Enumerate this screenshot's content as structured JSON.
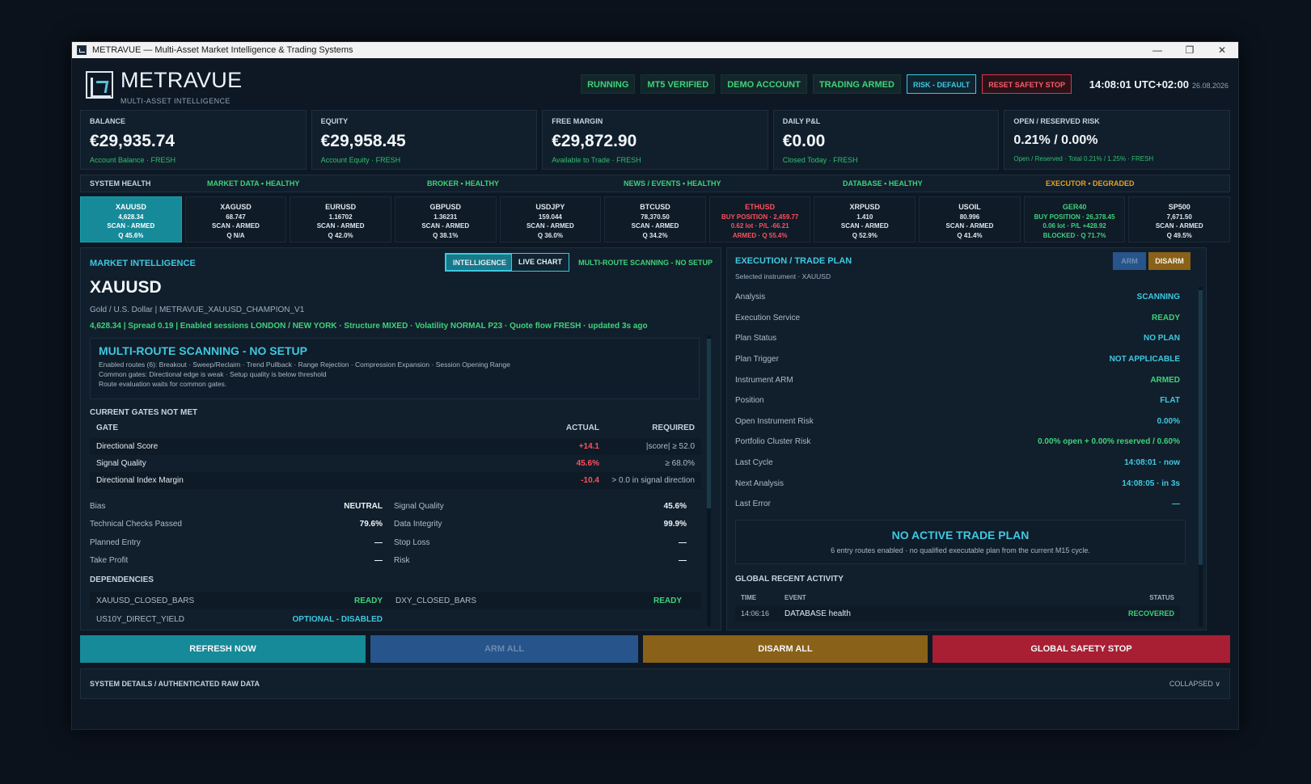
{
  "window": {
    "title": "METRAVUE — Multi-Asset Market Intelligence & Trading Systems",
    "minimize": "—",
    "restore": "❐",
    "close": "✕"
  },
  "brand": {
    "name": "METRAVUE",
    "tagline": "MULTI-ASSET INTELLIGENCE"
  },
  "status_pills": [
    "RUNNING",
    "MT5 VERIFIED",
    "DEMO ACCOUNT",
    "TRADING ARMED"
  ],
  "risk_button": "RISK - DEFAULT",
  "safety_button": "RESET SAFETY STOP",
  "clock": {
    "time": "14:08:01 UTC+02:00",
    "date": "26.08.2026"
  },
  "kpis": [
    {
      "label": "BALANCE",
      "value": "€29,935.74",
      "sub": "Account Balance · FRESH"
    },
    {
      "label": "EQUITY",
      "value": "€29,958.45",
      "sub": "Account Equity · FRESH"
    },
    {
      "label": "FREE MARGIN",
      "value": "€29,872.90",
      "sub": "Available to Trade · FRESH"
    },
    {
      "label": "DAILY P&L",
      "value": "€0.00",
      "sub": "Closed Today · FRESH"
    },
    {
      "label": "OPEN / RESERVED RISK",
      "value": "0.21% / 0.00%",
      "sub": "Open / Reserved · Total 0.21% / 1.25% · FRESH"
    }
  ],
  "health": {
    "title": "SYSTEM HEALTH",
    "items": [
      {
        "label": "MARKET DATA",
        "state": "HEALTHY"
      },
      {
        "label": "BROKER",
        "state": "HEALTHY"
      },
      {
        "label": "NEWS / EVENTS",
        "state": "HEALTHY"
      },
      {
        "label": "DATABASE",
        "state": "HEALTHY"
      },
      {
        "label": "EXECUTOR",
        "state": "DEGRADED"
      }
    ]
  },
  "tiles": [
    {
      "name": "XAUUSD",
      "l1": "4,628.34",
      "l2": "SCAN - ARMED",
      "l3": "Q 45.6%"
    },
    {
      "name": "XAGUSD",
      "l1": "68.747",
      "l2": "SCAN - ARMED",
      "l3": "Q N/A"
    },
    {
      "name": "EURUSD",
      "l1": "1.16702",
      "l2": "SCAN - ARMED",
      "l3": "Q 42.0%"
    },
    {
      "name": "GBPUSD",
      "l1": "1.36231",
      "l2": "SCAN - ARMED",
      "l3": "Q 38.1%"
    },
    {
      "name": "USDJPY",
      "l1": "159.044",
      "l2": "SCAN - ARMED",
      "l3": "Q 36.0%"
    },
    {
      "name": "BTCUSD",
      "l1": "78,370.50",
      "l2": "SCAN - ARMED",
      "l3": "Q 34.2%"
    },
    {
      "name": "ETHUSD",
      "l1": "BUY POSITION · 2,459.77",
      "l2": "0.62 lot · P/L -66.21",
      "l3": "ARMED · Q 55.4%"
    },
    {
      "name": "XRPUSD",
      "l1": "1.410",
      "l2": "SCAN - ARMED",
      "l3": "Q 52.9%"
    },
    {
      "name": "USOIL",
      "l1": "80.996",
      "l2": "SCAN - ARMED",
      "l3": "Q 41.4%"
    },
    {
      "name": "GER40",
      "l1": "BUY POSITION · 26,378.45",
      "l2": "0.06 lot · P/L +428.92",
      "l3": "BLOCKED · Q 71.7%"
    },
    {
      "name": "SP500",
      "l1": "7,671.50",
      "l2": "SCAN - ARMED",
      "l3": "Q 49.5%"
    }
  ],
  "intel": {
    "title": "MARKET INTELLIGENCE",
    "tab_intel": "INTELLIGENCE",
    "tab_chart": "LIVE CHART",
    "scan_note": "MULTI-ROUTE SCANNING - NO SETUP",
    "symbol": "XAUUSD",
    "desc": "Gold / U.S. Dollar  |  METRAVUE_XAUUSD_CHAMPION_V1",
    "summary": "4,628.34  |  Spread 0.19  |  Enabled sessions LONDON / NEW YORK  ·  Structure MIXED  ·  Volatility NORMAL P23  ·  Quote flow FRESH  ·  updated 3s ago",
    "box_title": "MULTI-ROUTE SCANNING - NO SETUP",
    "box_lines": [
      "Enabled routes (6): Breakout · Sweep/Reclaim · Trend Pullback · Range Rejection · Compression Expansion · Session Opening Range",
      "Common gates: Directional edge is weak  ·  Setup quality is below threshold",
      "Route evaluation waits for common gates."
    ],
    "gates_title": "CURRENT GATES NOT MET",
    "gate_headers": {
      "gate": "GATE",
      "actual": "ACTUAL",
      "required": "REQUIRED"
    },
    "gates": [
      {
        "gate": "Directional Score",
        "actual": "+14.1",
        "required": "|score| ≥ 52.0"
      },
      {
        "gate": "Signal Quality",
        "actual": "45.6%",
        "required": "≥ 68.0%"
      },
      {
        "gate": "Directional Index Margin",
        "actual": "-10.4",
        "required": "> 0.0 in signal direction"
      }
    ],
    "metrics": [
      [
        {
          "label": "Bias",
          "value": "NEUTRAL"
        },
        {
          "label": "Signal Quality",
          "value": "45.6%"
        }
      ],
      [
        {
          "label": "Technical Checks Passed",
          "value": "79.6%"
        },
        {
          "label": "Data Integrity",
          "value": "99.9%"
        }
      ],
      [
        {
          "label": "Planned Entry",
          "value": "—"
        },
        {
          "label": "Stop Loss",
          "value": "—"
        }
      ],
      [
        {
          "label": "Take Profit",
          "value": "—"
        },
        {
          "label": "Risk",
          "value": "—"
        }
      ]
    ],
    "deps_title": "DEPENDENCIES",
    "deps": [
      {
        "name": "XAUUSD_CLOSED_BARS",
        "value": "READY",
        "name2": "DXY_CLOSED_BARS",
        "value2": "READY"
      },
      {
        "name": "US10Y_DIRECT_YIELD",
        "value": "OPTIONAL - DISABLED"
      }
    ]
  },
  "exec": {
    "title": "EXECUTION / TRADE PLAN",
    "arm": "ARM",
    "disarm": "DISARM",
    "selected": "Selected instrument · XAUUSD",
    "rows": [
      {
        "label": "Analysis",
        "value": "SCANNING"
      },
      {
        "label": "Execution Service",
        "value": "READY"
      },
      {
        "label": "Plan Status",
        "value": "NO PLAN"
      },
      {
        "label": "Plan Trigger",
        "value": "NOT APPLICABLE"
      },
      {
        "label": "Instrument ARM",
        "value": "ARMED"
      },
      {
        "label": "Position",
        "value": "FLAT"
      },
      {
        "label": "Open Instrument Risk",
        "value": "0.00%"
      },
      {
        "label": "Portfolio Cluster Risk",
        "value": "0.00% open + 0.00% reserved / 0.60%"
      },
      {
        "label": "Last Cycle",
        "value": "14:08:01  ·  now"
      },
      {
        "label": "Next Analysis",
        "value": "14:08:05  ·  in 3s"
      },
      {
        "label": "Last Error",
        "value": "—"
      }
    ],
    "no_plan_title": "NO ACTIVE TRADE PLAN",
    "no_plan_sub": "6 entry routes enabled · no qualified executable plan from the current M15 cycle.",
    "activity_title": "GLOBAL RECENT ACTIVITY",
    "activity_headers": {
      "time": "TIME",
      "event": "EVENT",
      "status": "STATUS"
    },
    "activity": [
      {
        "time": "14:06:16",
        "event": "DATABASE health",
        "status": "RECOVERED"
      }
    ]
  },
  "actions": {
    "refresh": "REFRESH NOW",
    "arm_all": "ARM ALL",
    "disarm_all": "DISARM ALL",
    "global_stop": "GLOBAL SAFETY STOP"
  },
  "details": {
    "title": "SYSTEM DETAILS / AUTHENTICATED RAW DATA",
    "state": "COLLAPSED ∨"
  },
  "colors": {
    "accent": "#3fc8e0",
    "ok": "#3fd27a",
    "warn": "#e8a21f",
    "danger": "#ff4f5e"
  }
}
